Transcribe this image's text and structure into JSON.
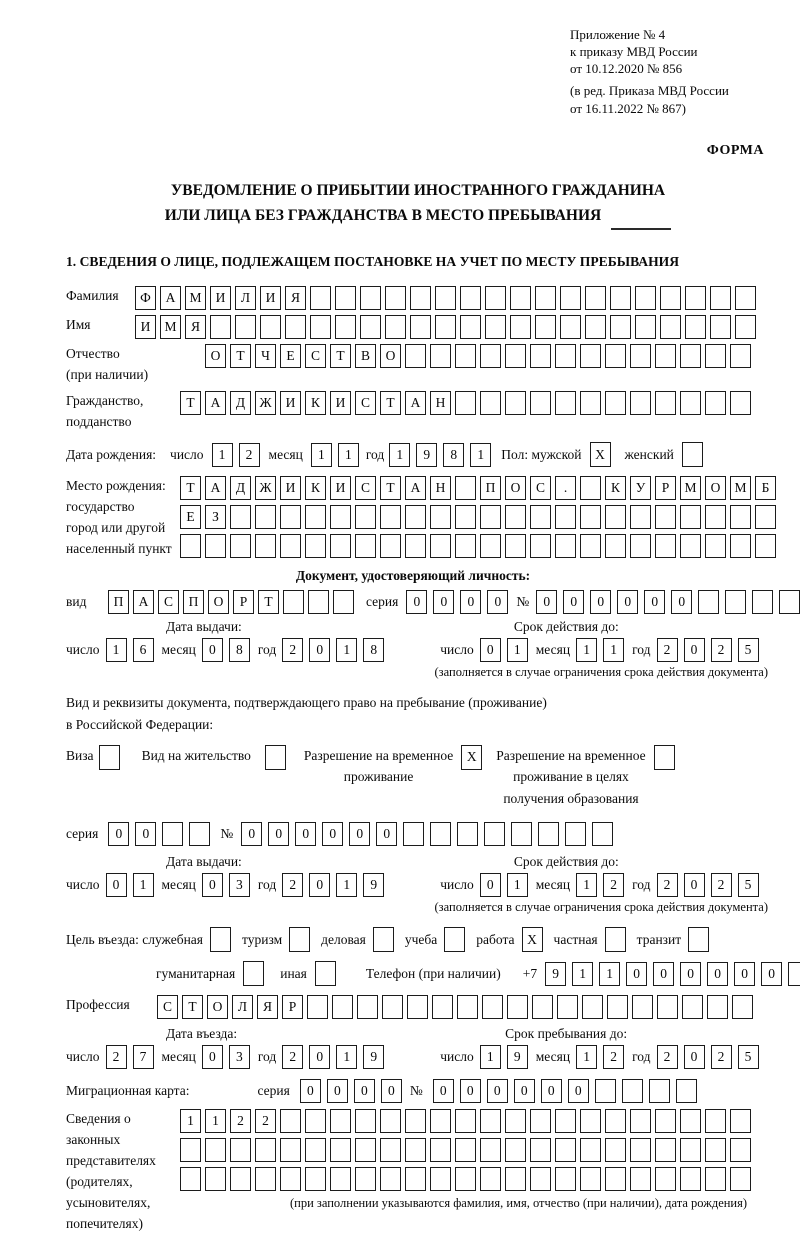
{
  "page": {
    "appendix": [
      "Приложение № 4",
      "к приказу МВД России",
      "от 10.12.2020 № 856"
    ],
    "appendix_note": [
      "(в ред. Приказа МВД России",
      "от 16.11.2022 № 867)"
    ],
    "form_word": "ФОРМА",
    "title1": "УВЕДОМЛЕНИЕ О ПРИБЫТИИ ИНОСТРАННОГО ГРАЖДАНИНА",
    "title2": "ИЛИ ЛИЦА БЕЗ ГРАЖДАНСТВА В МЕСТО ПРЕБЫВАНИЯ",
    "section1_heading": "1. СВЕДЕНИЯ О ЛИЦЕ, ПОДЛЕЖАЩЕМ ПОСТАНОВКЕ НА УЧЕТ ПО МЕСТУ ПРЕБЫВАНИЯ"
  },
  "labels": {
    "surname": "Фамилия",
    "name": "Имя",
    "patronymic": "Отчество",
    "patronymic2": "(при наличии)",
    "citizenship1": "Гражданство,",
    "citizenship2": "подданство",
    "birth_date": "Дата рождения:",
    "day": "число",
    "month": "месяц",
    "year": "год",
    "sex": "Пол: мужской",
    "female": "женский",
    "birthplace1": "Место рождения:",
    "birthplace2": "государство",
    "birthplace3": "город или другой",
    "birthplace4": "населенный пункт",
    "identity_doc": "Документ, удостоверяющий личность:",
    "doc_kind": "вид",
    "series": "серия",
    "number": "№",
    "issue_date": "Дата выдачи:",
    "valid_until": "Срок действия до:",
    "valid_note": "(заполняется в случае ограничения срока действия документа)",
    "resident_doc1": "Вид и реквизиты документа, подтверждающего право на пребывание (проживание)",
    "resident_doc2": "в Российской Федерации:",
    "visa": "Виза",
    "residence_permit": "Вид на жительство",
    "temp_residence": [
      "Разрешение на временное",
      "проживание"
    ],
    "temp_residence_edu": [
      "Разрешение на временное",
      "проживание в целях",
      "получения образования"
    ],
    "purpose": "Цель въезда: служебная",
    "tourism": "туризм",
    "business": "деловая",
    "study": "учеба",
    "work": "работа",
    "private": "частная",
    "transit": "транзит",
    "humanitarian": "гуманитарная",
    "other": "иная",
    "phone": "Телефон (при наличии)",
    "phone_prefix": "+7",
    "profession": "Профессия",
    "entry_date": "Дата въезда:",
    "stay_until": "Срок пребывания до:",
    "migration_card": "Миграционная карта:",
    "representatives": [
      "Сведения о",
      "законных",
      "представителях",
      "(родителях,",
      "усыновителях,",
      "попечителях)"
    ],
    "representatives_note": "(при заполнении указываются фамилия, имя, отчество (при наличии), дата рождения)"
  },
  "rows": {
    "surname": {
      "v": "ФАМИЛИЯ",
      "n": 25
    },
    "name": {
      "v": "ИМЯ",
      "n": 25
    },
    "patronymic": {
      "v": "ОТЧЕСТВО",
      "n": 22
    },
    "citizenship": {
      "v": "ТАДЖИКИСТАН",
      "n": 23
    },
    "birth_day": {
      "v": "12",
      "n": 2
    },
    "birth_month": {
      "v": "11",
      "n": 2
    },
    "birth_year": {
      "v": "1981",
      "n": 4
    },
    "birthplace1": {
      "v": "ТАДЖИКИСТАН ПОС. КУРМОМБ",
      "n": 24
    },
    "birthplace2": {
      "v": "ЕЗ",
      "n": 24
    },
    "birthplace3": {
      "v": "",
      "n": 24
    },
    "doc_type": {
      "v": "ПАСПОРТ",
      "n": 10
    },
    "doc_series": {
      "v": "0000",
      "n": 4
    },
    "doc_number": {
      "v": "000000",
      "n": 11
    },
    "doc_issue_day": {
      "v": "16",
      "n": 2
    },
    "doc_issue_month": {
      "v": "08",
      "n": 2
    },
    "doc_issue_year": {
      "v": "2018",
      "n": 4
    },
    "doc_expiry_day": {
      "v": "01",
      "n": 2
    },
    "doc_expiry_month": {
      "v": "11",
      "n": 2
    },
    "doc_expiry_year": {
      "v": "2025",
      "n": 4
    },
    "permit_series": {
      "v": "00",
      "n": 4
    },
    "permit_number": {
      "v": "000000",
      "n": 14
    },
    "permit_issue_day": {
      "v": "01",
      "n": 2
    },
    "permit_issue_month": {
      "v": "03",
      "n": 2
    },
    "permit_issue_year": {
      "v": "2019",
      "n": 4
    },
    "permit_expiry_day": {
      "v": "01",
      "n": 2
    },
    "permit_expiry_month": {
      "v": "12",
      "n": 2
    },
    "permit_expiry_year": {
      "v": "2025",
      "n": 4
    },
    "phone": {
      "v": "911000000",
      "n": 10
    },
    "profession": {
      "v": "СТОЛЯР",
      "n": 24
    },
    "entry_day": {
      "v": "27",
      "n": 2
    },
    "entry_month": {
      "v": "03",
      "n": 2
    },
    "entry_year": {
      "v": "2019",
      "n": 4
    },
    "stay_day": {
      "v": "19",
      "n": 2
    },
    "stay_month": {
      "v": "12",
      "n": 2
    },
    "stay_year": {
      "v": "2025",
      "n": 4
    },
    "migcard_series": {
      "v": "0000",
      "n": 4
    },
    "migcard_number": {
      "v": "000000",
      "n": 10
    },
    "representatives1": {
      "v": "1122",
      "n": 23
    },
    "representatives2": {
      "v": "",
      "n": 23
    },
    "representatives3": {
      "v": "",
      "n": 23
    }
  },
  "checks": {
    "male": "X",
    "female": "",
    "visa": "",
    "residence_permit": "",
    "temp_residence": "X",
    "temp_residence_edu": "",
    "official": "",
    "tourism": "",
    "business": "",
    "study": "",
    "work": "X",
    "private": "",
    "transit": "",
    "humanitarian": "",
    "other": ""
  }
}
